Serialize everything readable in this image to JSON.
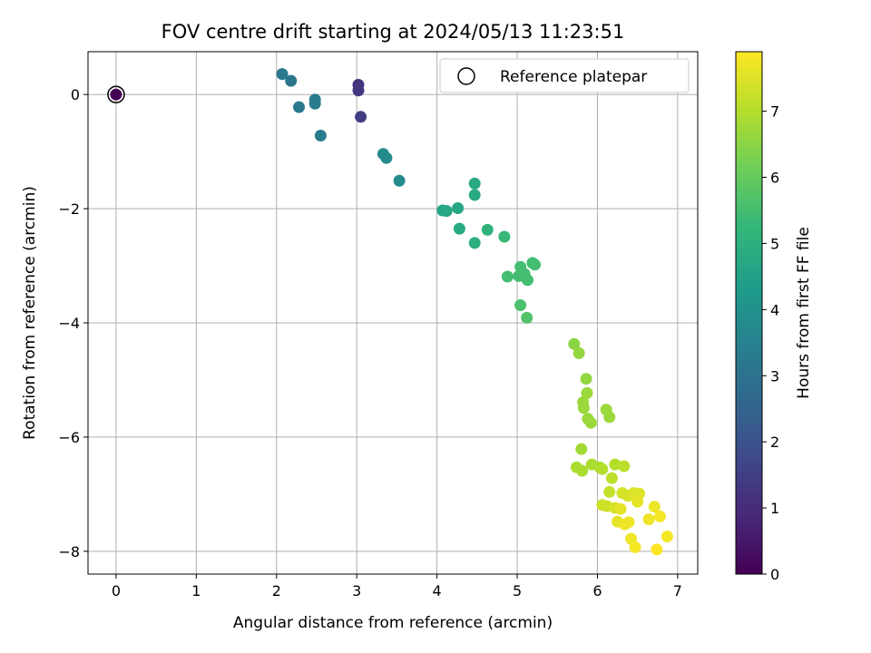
{
  "chart_data": {
    "type": "scatter",
    "title": "FOV centre drift starting at 2024/05/13 11:23:51",
    "xlabel": "Angular distance from reference (arcmin)",
    "ylabel": "Rotation from reference (arcmin)",
    "xlim": [
      -0.35,
      7.25
    ],
    "ylim": [
      -8.4,
      0.75
    ],
    "x_ticks": [
      0,
      1,
      2,
      3,
      4,
      5,
      6,
      7
    ],
    "y_ticks": [
      0,
      -2,
      -4,
      -6,
      -8
    ],
    "grid": true,
    "legend": {
      "label": "Reference platepar",
      "placement": "top-right",
      "marker": "open-circle"
    },
    "reference_point": {
      "x": 0.0,
      "y": 0.0
    },
    "colorbar": {
      "label": "Hours from first FF file",
      "colormap": "viridis",
      "range": [
        0,
        7.9
      ],
      "ticks": [
        0,
        1,
        2,
        3,
        4,
        5,
        6,
        7
      ]
    },
    "series": [
      {
        "x": [
          0.0,
          3.02,
          3.02,
          3.05,
          2.07,
          2.18,
          2.28,
          2.48,
          2.48,
          2.55,
          3.33,
          3.37,
          3.53,
          4.07,
          4.12,
          4.26,
          4.47,
          4.47,
          4.28,
          4.63,
          4.47,
          4.84,
          4.88,
          5.02,
          5.04,
          5.09,
          5.19,
          5.22,
          5.13,
          5.04,
          5.12,
          5.71,
          5.77,
          5.86,
          5.82,
          5.83,
          5.87,
          5.92,
          5.88,
          5.8,
          6.11,
          6.15,
          5.74,
          5.81,
          5.93,
          6.03,
          6.06,
          6.22,
          6.33,
          6.18,
          6.15,
          6.06,
          6.12,
          6.22,
          6.31,
          6.38,
          6.45,
          6.52,
          6.5,
          6.25,
          6.29,
          6.34,
          6.39,
          6.42,
          6.47,
          6.64,
          6.71,
          6.78,
          6.87,
          6.74
        ],
        "y": [
          0.0,
          0.17,
          0.07,
          -0.39,
          0.36,
          0.24,
          -0.22,
          -0.09,
          -0.16,
          -0.72,
          -1.04,
          -1.11,
          -1.51,
          -2.03,
          -2.04,
          -1.99,
          -1.56,
          -1.76,
          -2.35,
          -2.37,
          -2.6,
          -2.49,
          -3.19,
          -3.18,
          -3.02,
          -3.14,
          -2.95,
          -2.98,
          -3.25,
          -3.69,
          -3.91,
          -4.37,
          -4.53,
          -4.98,
          -5.39,
          -5.49,
          -5.23,
          -5.75,
          -5.68,
          -6.21,
          -5.52,
          -5.65,
          -6.53,
          -6.59,
          -6.48,
          -6.53,
          -6.56,
          -6.48,
          -6.51,
          -6.72,
          -6.96,
          -7.19,
          -7.21,
          -7.24,
          -6.98,
          -7.03,
          -6.98,
          -6.99,
          -7.13,
          -7.48,
          -7.26,
          -7.53,
          -7.49,
          -7.78,
          -7.93,
          -7.44,
          -7.22,
          -7.39,
          -7.74,
          -7.97
        ],
        "c": [
          0.0,
          1.2,
          1.3,
          1.4,
          3.2,
          3.1,
          3.2,
          3.3,
          3.3,
          3.3,
          3.8,
          3.8,
          3.8,
          4.7,
          4.7,
          4.7,
          4.8,
          4.8,
          4.8,
          5.1,
          5.0,
          5.3,
          5.5,
          5.5,
          5.5,
          5.5,
          5.5,
          5.5,
          5.5,
          5.6,
          5.7,
          6.5,
          6.6,
          6.6,
          6.7,
          6.7,
          6.7,
          6.7,
          6.7,
          6.8,
          6.7,
          6.7,
          6.9,
          6.9,
          6.9,
          6.9,
          7.0,
          7.0,
          7.1,
          7.1,
          7.2,
          7.3,
          7.3,
          7.4,
          7.4,
          7.4,
          7.5,
          7.5,
          7.6,
          7.6,
          7.6,
          7.7,
          7.7,
          7.7,
          7.8,
          7.7,
          7.7,
          7.8,
          7.8,
          7.9
        ]
      }
    ]
  }
}
